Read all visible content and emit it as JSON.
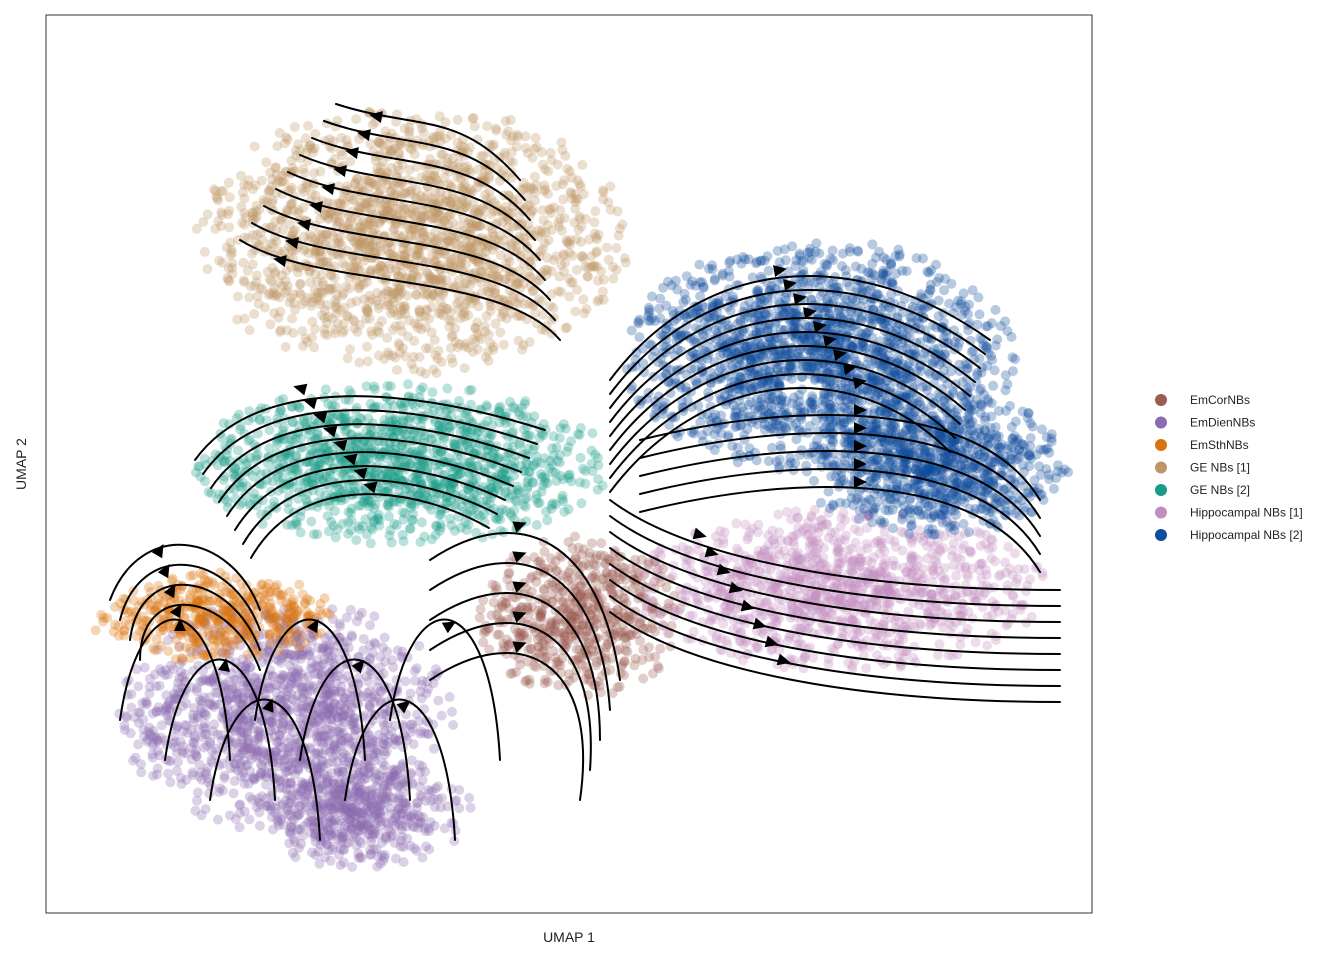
{
  "chart_data": {
    "type": "scatter",
    "title": "",
    "xlabel": "UMAP 1",
    "ylabel": "UMAP 2",
    "grid": false,
    "axis_ticks": false,
    "xlim": [
      0,
      10
    ],
    "ylim": [
      0,
      10
    ],
    "overlay": "velocity-streamlines",
    "legend_position": "right",
    "series": [
      {
        "name": "EmCorNBs",
        "color": "#9a5d54",
        "clusters": [
          {
            "cx": 5.1,
            "cy": 3.3,
            "rx": 1.0,
            "ry": 0.9,
            "n": 600
          }
        ]
      },
      {
        "name": "EmDienNBs",
        "color": "#8b6bb1",
        "clusters": [
          {
            "cx": 2.3,
            "cy": 2.2,
            "rx": 1.6,
            "ry": 1.3,
            "n": 1400
          },
          {
            "cx": 3.0,
            "cy": 1.1,
            "rx": 1.1,
            "ry": 0.6,
            "n": 500
          }
        ]
      },
      {
        "name": "EmSthNBs",
        "color": "#d9730d",
        "clusters": [
          {
            "cx": 1.6,
            "cy": 3.3,
            "rx": 1.2,
            "ry": 0.5,
            "n": 450
          }
        ]
      },
      {
        "name": "GE NBs [1]",
        "color": "#bc9663",
        "clusters": [
          {
            "cx": 3.5,
            "cy": 7.5,
            "rx": 2.1,
            "ry": 1.5,
            "n": 1800
          }
        ]
      },
      {
        "name": "GE NBs [2]",
        "color": "#1b9a89",
        "clusters": [
          {
            "cx": 3.4,
            "cy": 5.0,
            "rx": 2.0,
            "ry": 0.9,
            "n": 1300
          }
        ]
      },
      {
        "name": "Hippocampal NBs [1]",
        "color": "#c48dc0",
        "clusters": [
          {
            "cx": 7.6,
            "cy": 3.6,
            "rx": 2.0,
            "ry": 0.9,
            "n": 1100
          }
        ]
      },
      {
        "name": "Hippocampal NBs [2]",
        "color": "#0f4c9c",
        "clusters": [
          {
            "cx": 7.4,
            "cy": 6.2,
            "rx": 1.9,
            "ry": 1.3,
            "n": 1800
          },
          {
            "cx": 8.5,
            "cy": 5.0,
            "rx": 1.3,
            "ry": 0.8,
            "n": 900
          }
        ]
      }
    ]
  }
}
